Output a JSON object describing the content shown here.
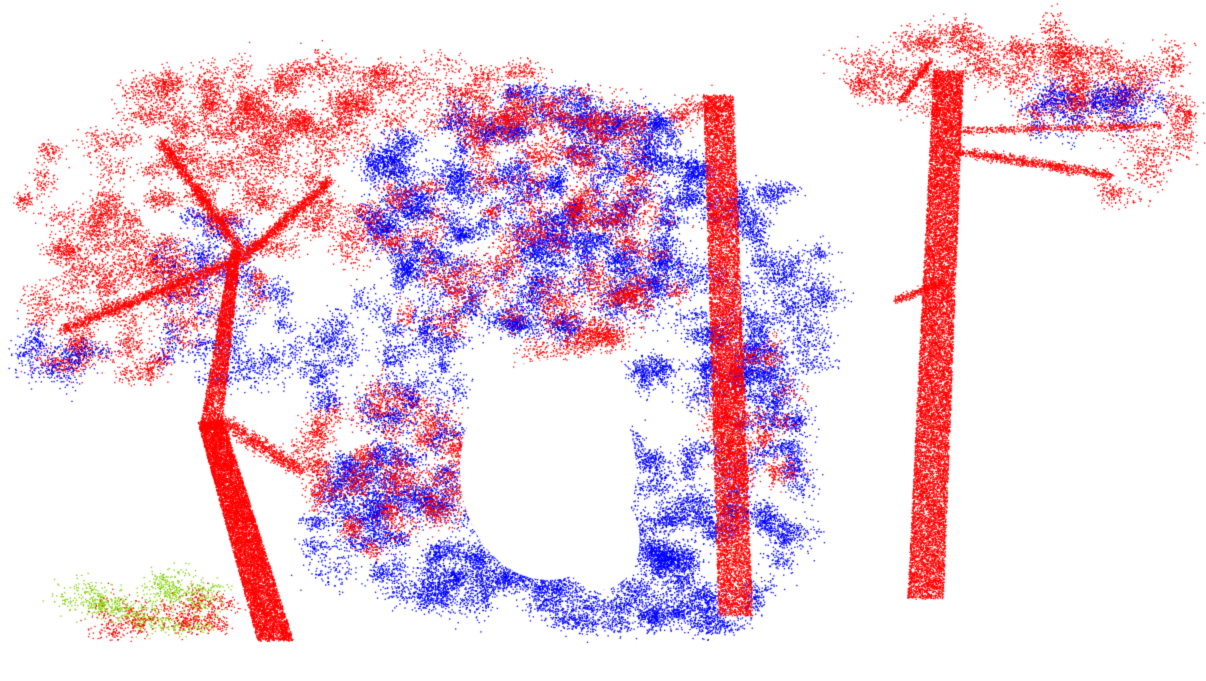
{
  "scene": {
    "background": "#ffffff",
    "classes": [
      {
        "name": "wood",
        "color": "#ff0000"
      },
      {
        "name": "leaf",
        "color": "#0000ff"
      },
      {
        "name": "ground-vegetation",
        "color": "#80d000"
      }
    ]
  }
}
